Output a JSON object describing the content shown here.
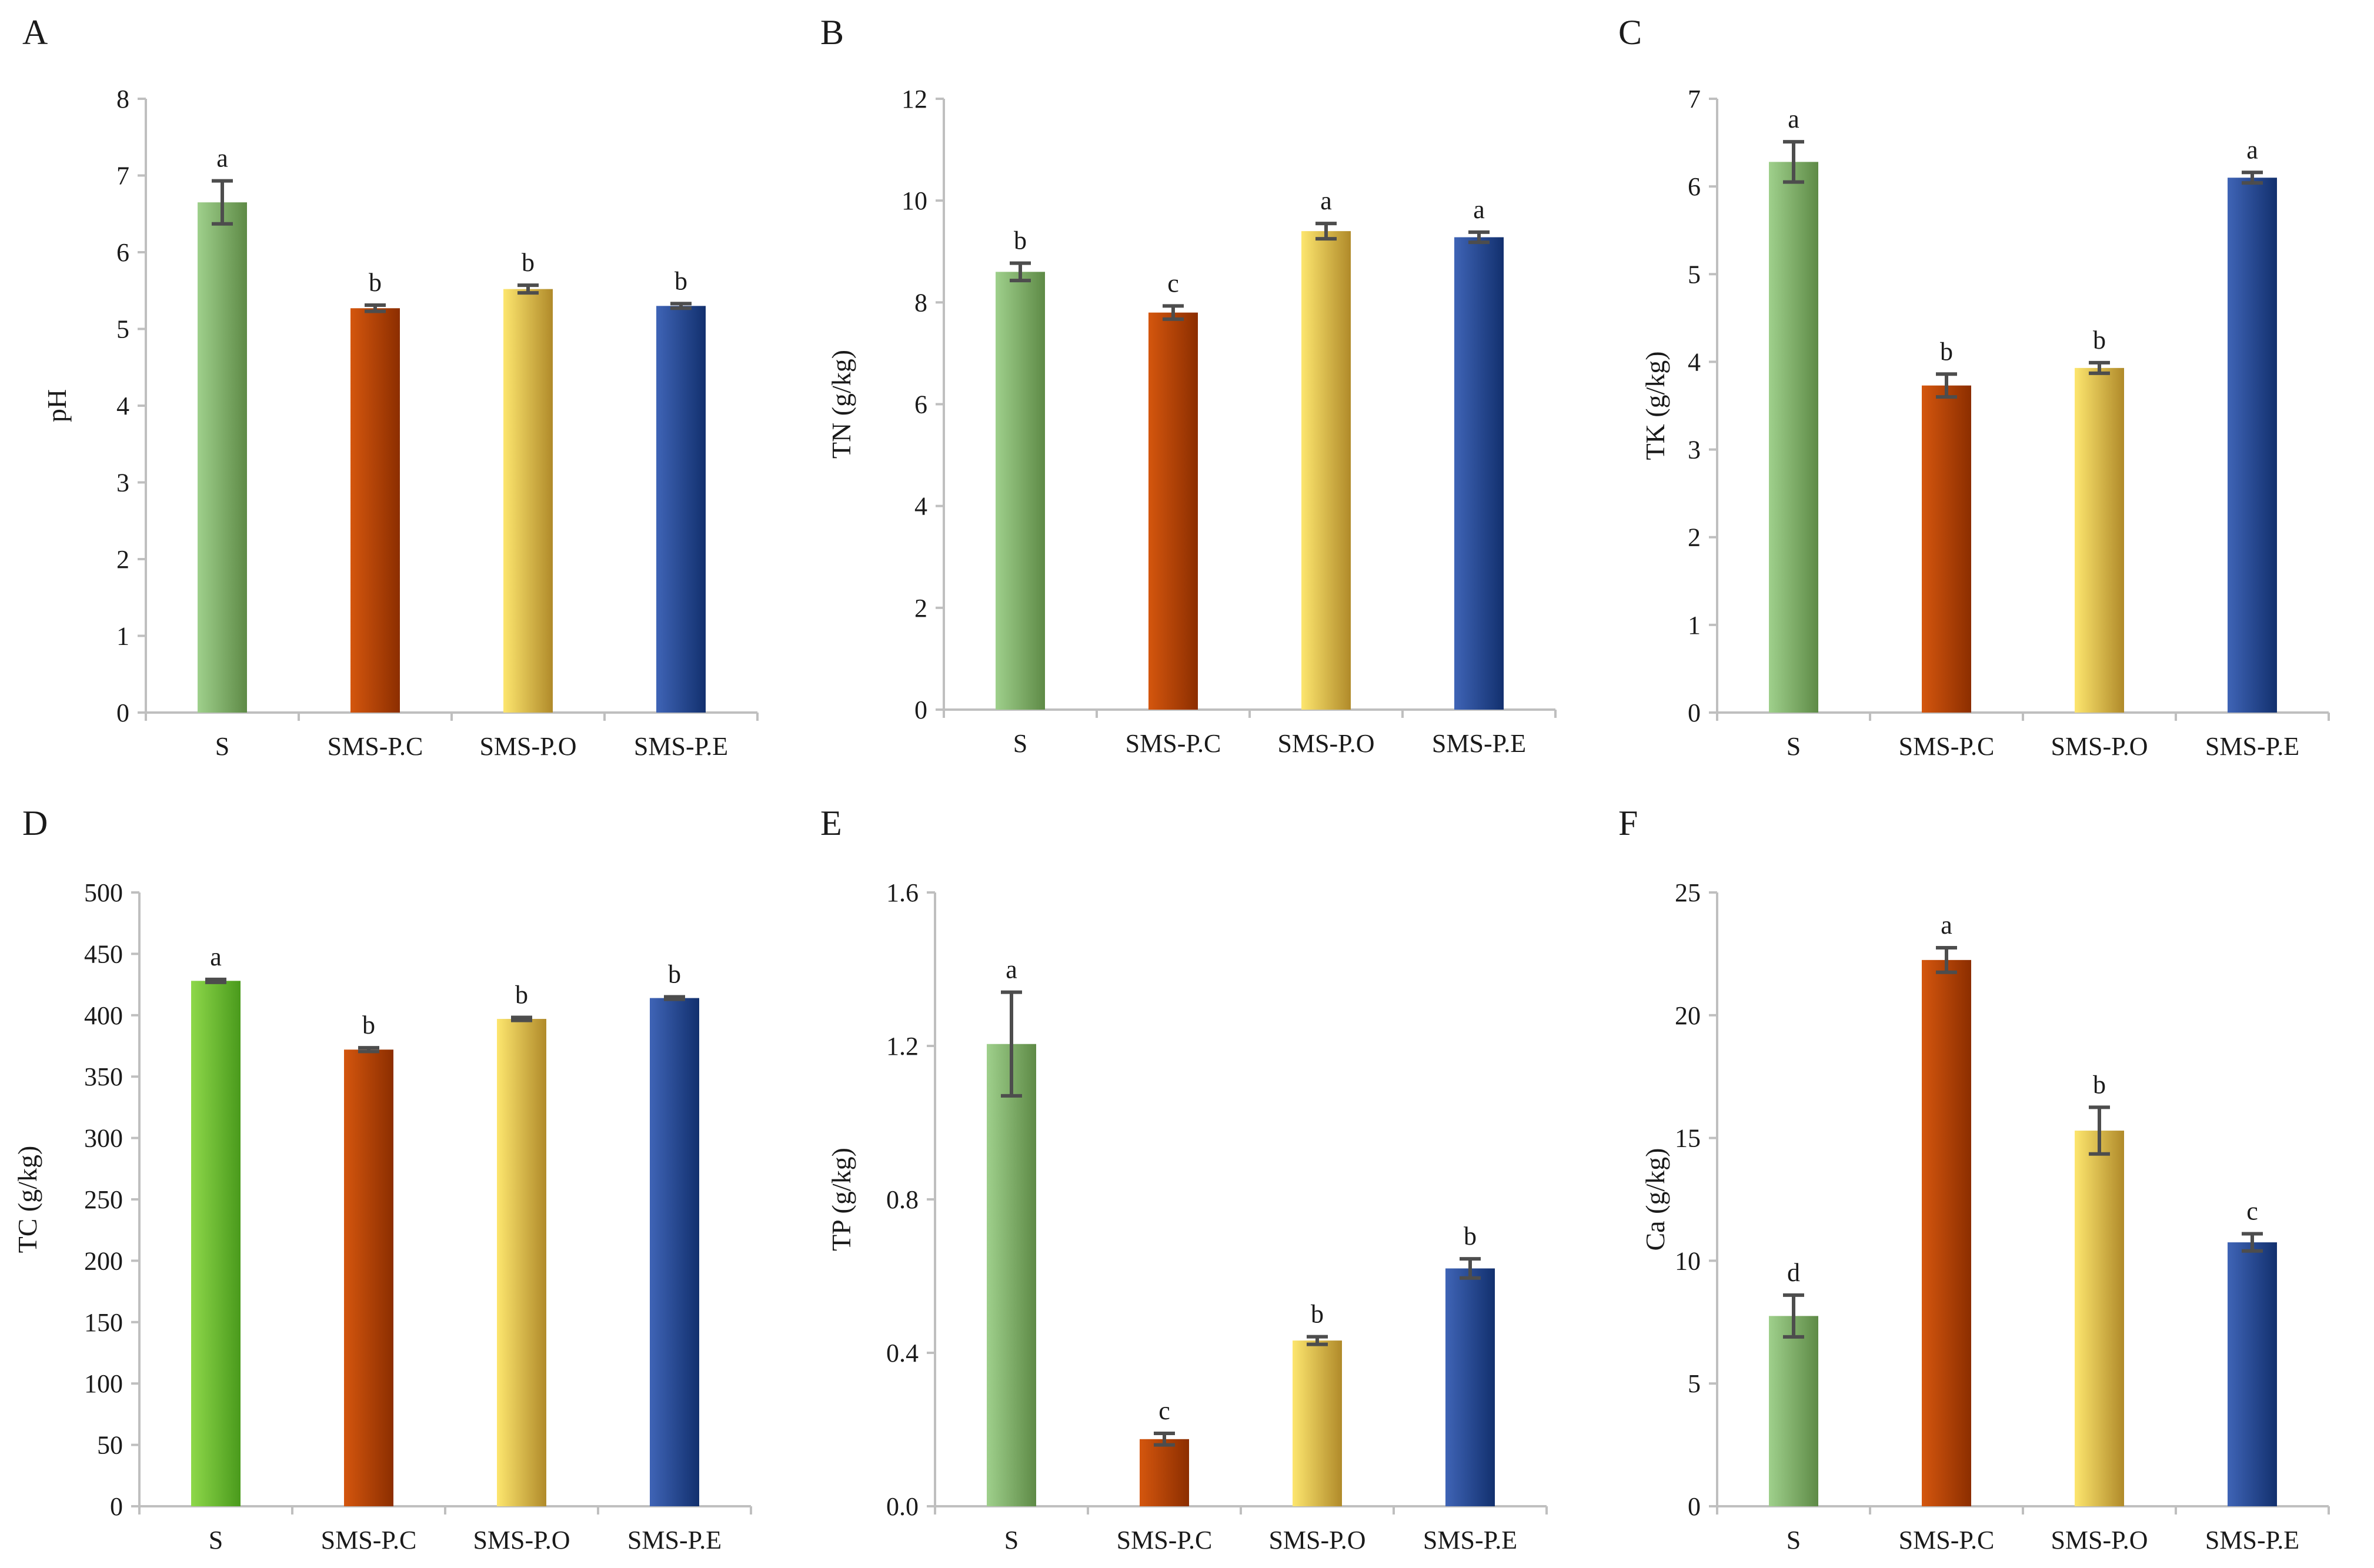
{
  "colors": {
    "S": [
      "#5e8a46",
      "#9fd08c"
    ],
    "S_bright": [
      "#4a9a1c",
      "#8ed84a"
    ],
    "SMS-P.C": [
      "#8c2e00",
      "#d4560e"
    ],
    "SMS-P.O": [
      "#b08a2a",
      "#fde66e"
    ],
    "SMS-P.E": [
      "#12306e",
      "#3f64b6"
    ]
  },
  "chart_data": [
    {
      "type": "bar",
      "panel": "A",
      "title": "",
      "xlabel": "",
      "ylabel": "pH",
      "ylim": [
        0,
        8
      ],
      "yticks": [
        "0",
        "1",
        "2",
        "3",
        "4",
        "5",
        "6",
        "7",
        "8"
      ],
      "categories": [
        "S",
        "SMS-P.C",
        "SMS-P.O",
        "SMS-P.E"
      ],
      "values": [
        6.65,
        5.27,
        5.52,
        5.3
      ],
      "errors": [
        0.28,
        0.04,
        0.05,
        0.03
      ],
      "significance": [
        "a",
        "b",
        "b",
        "b"
      ]
    },
    {
      "type": "bar",
      "panel": "B",
      "title": "",
      "xlabel": "",
      "ylabel": "TN (g/kg)",
      "ylim": [
        0,
        12
      ],
      "yticks": [
        "0",
        "2",
        "4",
        "6",
        "8",
        "10",
        "12"
      ],
      "categories": [
        "S",
        "SMS-P.C",
        "SMS-P.O",
        "SMS-P.E"
      ],
      "values": [
        8.6,
        7.8,
        9.4,
        9.28
      ],
      "errors": [
        0.17,
        0.13,
        0.15,
        0.1
      ],
      "significance": [
        "b",
        "c",
        "a",
        "a"
      ]
    },
    {
      "type": "bar",
      "panel": "C",
      "title": "",
      "xlabel": "",
      "ylabel": "TK (g/kg)",
      "ylim": [
        0,
        7
      ],
      "yticks": [
        "0",
        "1",
        "2",
        "3",
        "4",
        "5",
        "6",
        "7"
      ],
      "categories": [
        "S",
        "SMS-P.C",
        "SMS-P.O",
        "SMS-P.E"
      ],
      "values": [
        6.28,
        3.73,
        3.93,
        6.1
      ],
      "errors": [
        0.23,
        0.13,
        0.06,
        0.06
      ],
      "significance": [
        "a",
        "b",
        "b",
        "a"
      ]
    },
    {
      "type": "bar",
      "panel": "D",
      "title": "",
      "xlabel": "",
      "ylabel": "TC  (g/kg)",
      "ylim": [
        0,
        500
      ],
      "yticks": [
        "0",
        "50",
        "100",
        "150",
        "200",
        "250",
        "300",
        "350",
        "400",
        "450",
        "500"
      ],
      "categories": [
        "S",
        "SMS-P.C",
        "SMS-P.O",
        "SMS-P.E"
      ],
      "values": [
        428,
        372,
        397,
        414
      ],
      "errors": [
        1.2,
        1.5,
        1.2,
        1.0
      ],
      "significance": [
        "a",
        "b",
        "b",
        "b"
      ]
    },
    {
      "type": "bar",
      "panel": "E",
      "title": "",
      "xlabel": "",
      "ylabel": "TP (g/kg)",
      "ylim": [
        0,
        1.6
      ],
      "yticks": [
        "0.0",
        "0.4",
        "0.8",
        "1.2",
        "1.6"
      ],
      "categories": [
        "S",
        "SMS-P.C",
        "SMS-P.O",
        "SMS-P.E"
      ],
      "values": [
        1.205,
        0.175,
        0.432,
        0.62
      ],
      "errors": [
        0.135,
        0.015,
        0.01,
        0.025
      ],
      "significance": [
        "a",
        "c",
        "b",
        "b"
      ]
    },
    {
      "type": "bar",
      "panel": "F",
      "title": "",
      "xlabel": "",
      "ylabel": "Ca (g/kg)",
      "ylim": [
        0,
        25
      ],
      "yticks": [
        "0",
        "5",
        "10",
        "15",
        "20",
        "25"
      ],
      "categories": [
        "S",
        "SMS-P.C",
        "SMS-P.O",
        "SMS-P.E"
      ],
      "values": [
        7.75,
        22.25,
        15.3,
        10.75
      ],
      "errors": [
        0.85,
        0.5,
        0.95,
        0.35
      ],
      "significance": [
        "d",
        "a",
        "b",
        "c"
      ]
    }
  ]
}
